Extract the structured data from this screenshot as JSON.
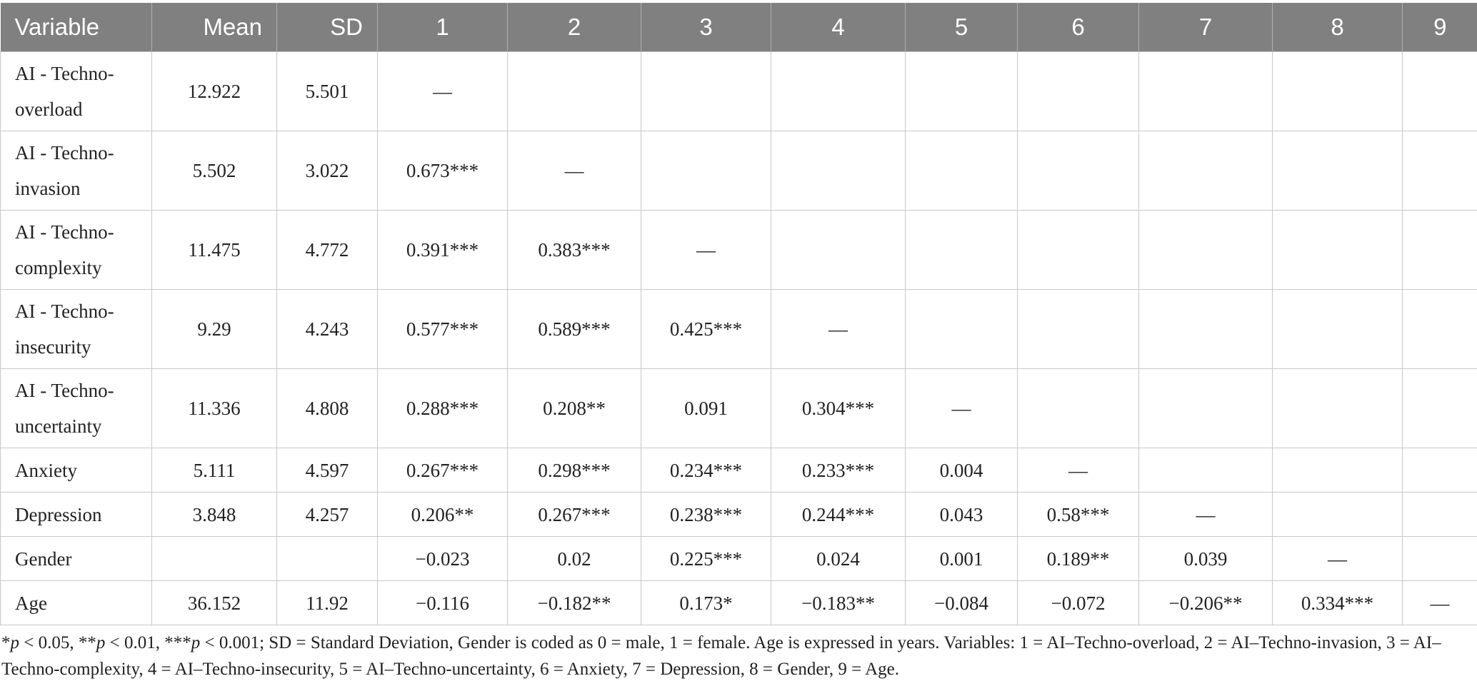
{
  "table": {
    "headers": [
      "Variable",
      "Mean",
      "SD",
      "1",
      "2",
      "3",
      "4",
      "5",
      "6",
      "7",
      "8",
      "9"
    ],
    "rows": [
      {
        "variable": "AI - Techno-overload",
        "mean": "12.922",
        "sd": "5.501",
        "cells": [
          "—",
          "",
          "",
          "",
          "",
          "",
          "",
          "",
          ""
        ]
      },
      {
        "variable": "AI - Techno-invasion",
        "mean": "5.502",
        "sd": "3.022",
        "cells": [
          "0.673***",
          "—",
          "",
          "",
          "",
          "",
          "",
          "",
          ""
        ]
      },
      {
        "variable": "AI - Techno-complexity",
        "mean": "11.475",
        "sd": "4.772",
        "cells": [
          "0.391***",
          "0.383***",
          "—",
          "",
          "",
          "",
          "",
          "",
          ""
        ]
      },
      {
        "variable": "AI - Techno-insecurity",
        "mean": "9.29",
        "sd": "4.243",
        "cells": [
          "0.577***",
          "0.589***",
          "0.425***",
          "—",
          "",
          "",
          "",
          "",
          ""
        ]
      },
      {
        "variable": "AI - Techno-uncertainty",
        "mean": "11.336",
        "sd": "4.808",
        "cells": [
          "0.288***",
          "0.208**",
          "0.091",
          "0.304***",
          "—",
          "",
          "",
          "",
          ""
        ]
      },
      {
        "variable": "Anxiety",
        "mean": "5.111",
        "sd": "4.597",
        "cells": [
          "0.267***",
          "0.298***",
          "0.234***",
          "0.233***",
          "0.004",
          "—",
          "",
          "",
          ""
        ]
      },
      {
        "variable": "Depression",
        "mean": "3.848",
        "sd": "4.257",
        "cells": [
          "0.206**",
          "0.267***",
          "0.238***",
          "0.244***",
          "0.043",
          "0.58***",
          "—",
          "",
          ""
        ]
      },
      {
        "variable": "Gender",
        "mean": "",
        "sd": "",
        "cells": [
          "−0.023",
          "0.02",
          "0.225***",
          "0.024",
          "0.001",
          "0.189**",
          "0.039",
          "—",
          ""
        ]
      },
      {
        "variable": "Age",
        "mean": "36.152",
        "sd": "11.92",
        "cells": [
          "−0.116",
          "−0.182**",
          "0.173*",
          "−0.183**",
          "−0.084",
          "−0.072",
          "−0.206**",
          "0.334***",
          "—"
        ]
      }
    ]
  },
  "note": {
    "p1": "p",
    "t1": " < 0.05, **",
    "p2": "p",
    "t2": " < 0.01, ***",
    "p3": "p",
    "t3": " < 0.001; SD = Standard Deviation, Gender is coded as 0 = male, 1 = female. Age is expressed in years. Variables: 1 = AI–Techno-overload, 2 = AI–Techno-invasion, 3 = AI–Techno-complexity, 4 = AI–Techno-insecurity, 5 = AI–Techno-uncertainty, 6 = Anxiety, 7 = Depression, 8 = Gender, 9 = Age.",
    "lead": "*"
  }
}
